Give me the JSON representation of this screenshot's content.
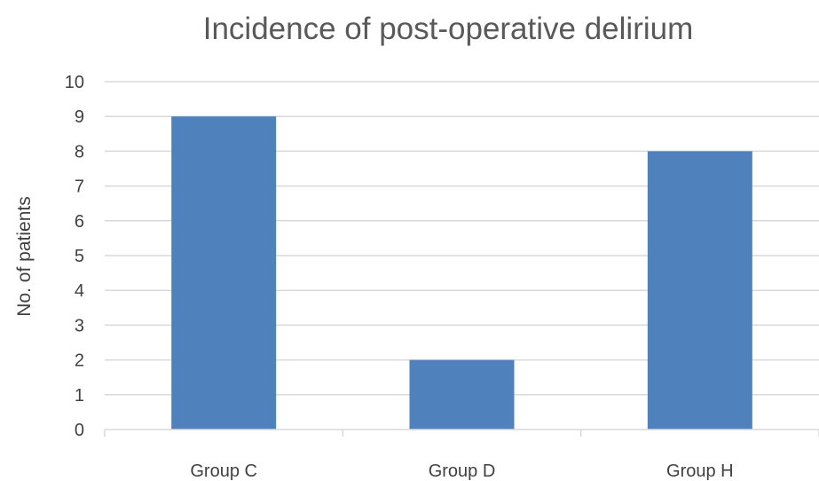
{
  "chart_data": {
    "type": "bar",
    "title": "Incidence of post-operative delirium",
    "xlabel": "",
    "ylabel": "No. of patients",
    "categories": [
      "Group C",
      "Group D",
      "Group H"
    ],
    "values": [
      9,
      2,
      8
    ],
    "ylim": [
      0,
      10
    ],
    "yticks": [
      0,
      1,
      2,
      3,
      4,
      5,
      6,
      7,
      8,
      9,
      10
    ],
    "grid": true,
    "legend": "none",
    "bar_color": "#4f81bd"
  }
}
